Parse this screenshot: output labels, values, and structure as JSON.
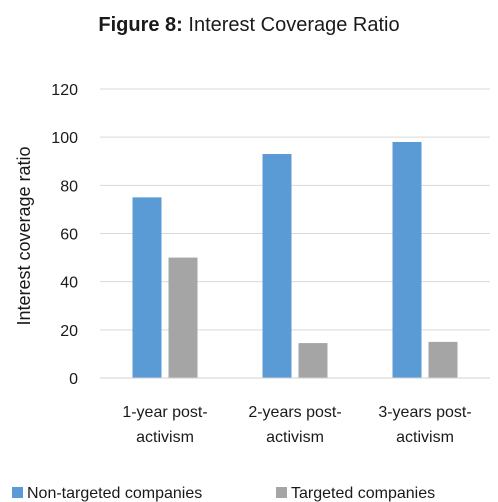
{
  "chart_data": {
    "type": "bar",
    "title_prefix": "Figure 8:",
    "title": "Interest Coverage Ratio",
    "xlabel": "",
    "ylabel": "Interest coverage ratio",
    "ylim": [
      0,
      120
    ],
    "yticks": [
      0,
      20,
      40,
      60,
      80,
      100,
      120
    ],
    "categories": [
      [
        "1-year post-",
        "activism"
      ],
      [
        "2-years post-",
        "activism"
      ],
      [
        "3-years post-",
        "activism"
      ]
    ],
    "series": [
      {
        "name": "Non-targeted companies",
        "color": "#5b9bd5",
        "values": [
          75,
          93,
          98
        ]
      },
      {
        "name": "Targeted companies",
        "color": "#a5a5a5",
        "values": [
          50,
          14.5,
          15
        ]
      }
    ],
    "grid": true,
    "legend": "bottom"
  }
}
